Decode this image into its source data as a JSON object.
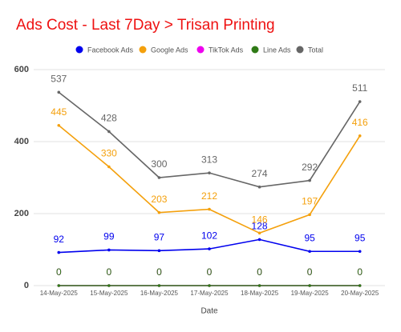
{
  "chart_data": {
    "type": "line",
    "title": "Ads Cost - Last 7Day > Trisan Printing",
    "x_label": "Date",
    "categories": [
      "14-May-2025",
      "15-May-2025",
      "16-May-2025",
      "17-May-2025",
      "18-May-2025",
      "19-May-2025",
      "20-May-2025"
    ],
    "series": [
      {
        "name": "Facebook Ads",
        "color": "#0000ee",
        "values": [
          92,
          99,
          97,
          102,
          128,
          95,
          95
        ]
      },
      {
        "name": "Google Ads",
        "color": "#f4a00c",
        "values": [
          445,
          330,
          203,
          212,
          146,
          197,
          416
        ]
      },
      {
        "name": "TikTok Ads",
        "color": "#ee00ee",
        "values": [
          0,
          0,
          0,
          0,
          0,
          0,
          0
        ]
      },
      {
        "name": "Line Ads",
        "color": "#2f7a16",
        "values": [
          0,
          0,
          0,
          0,
          0,
          0,
          0
        ]
      },
      {
        "name": "Total",
        "color": "#666666",
        "values": [
          537,
          428,
          300,
          313,
          274,
          292,
          511
        ]
      }
    ],
    "ylim": [
      0,
      600
    ],
    "yticks": [
      0,
      200,
      400,
      600
    ],
    "grid": true,
    "legend": "top",
    "title_color": "#ee1111"
  }
}
